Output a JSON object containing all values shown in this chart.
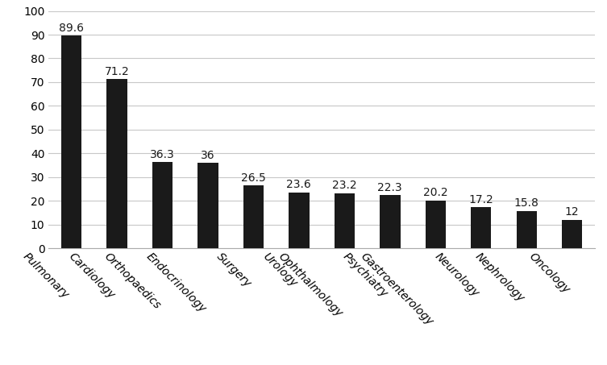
{
  "categories": [
    "Pulmonary",
    "Cardiology",
    "Orthopaedics",
    "Endocrinology",
    "Surgery",
    "Urology",
    "Ophthalmology",
    "Psychiatry",
    "Gastroenterology",
    "Neurology",
    "Nephrology",
    "Oncology"
  ],
  "values": [
    89.6,
    71.2,
    36.3,
    36.0,
    26.5,
    23.6,
    23.2,
    22.3,
    20.2,
    17.2,
    15.8,
    12.0
  ],
  "bar_color": "#1a1a1a",
  "label_color": "#1a1a1a",
  "background_color": "#ffffff",
  "ylim": [
    0,
    100
  ],
  "yticks": [
    0,
    10,
    20,
    30,
    40,
    50,
    60,
    70,
    80,
    90,
    100
  ],
  "grid_color": "#c8c8c8",
  "label_fontsize": 10,
  "tick_fontsize": 10,
  "value_fontsize": 10,
  "bar_width": 0.45,
  "rotation": 315
}
